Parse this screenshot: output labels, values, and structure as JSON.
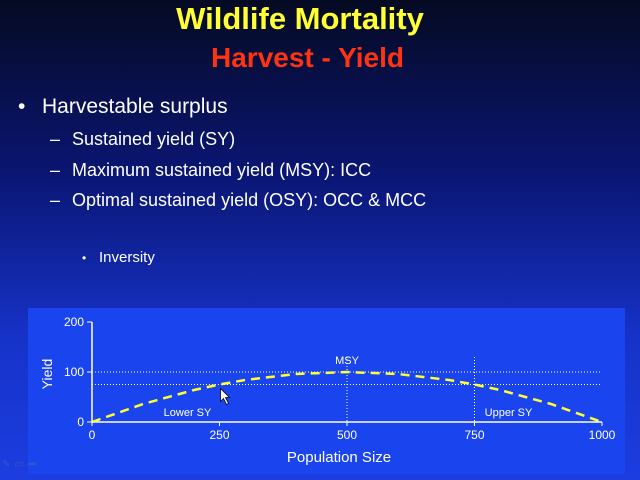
{
  "slide": {
    "title": "Wildlife Mortality",
    "subtitle": "Harvest - Yield",
    "main_bullet": "Harvestable surplus",
    "sub_bullets": [
      "Sustained yield (SY)",
      "Maximum sustained yield (MSY): ICC",
      "Optimal sustained yield (OSY): OCC & MCC"
    ],
    "minor_bullet": "Inversity",
    "bullet_glyph": "•",
    "dash_glyph": "–"
  },
  "colors": {
    "title": "#ffff33",
    "subtitle": "#ff3311",
    "chart_background": "#1a45ee",
    "curve": "#ffff33"
  },
  "chart_data": {
    "type": "line",
    "xlabel": "Population Size",
    "ylabel": "Yield",
    "xlim": [
      0,
      1000
    ],
    "ylim": [
      0,
      200
    ],
    "xticks": [
      0,
      250,
      500,
      750,
      1000
    ],
    "yticks": [
      0,
      100,
      200
    ],
    "series": [
      {
        "x": [
          0,
          100,
          200,
          250,
          300,
          400,
          500,
          600,
          700,
          750,
          800,
          900,
          1000
        ],
        "values": [
          0,
          36,
          64,
          75,
          84,
          96,
          100,
          96,
          84,
          75,
          64,
          36,
          0
        ],
        "style": "dashed"
      }
    ],
    "reference_lines": [
      {
        "orientation": "horizontal",
        "y": 100
      },
      {
        "orientation": "horizontal",
        "y": 75
      },
      {
        "orientation": "vertical",
        "x": 500
      },
      {
        "orientation": "vertical",
        "x": 750
      }
    ],
    "annotations": [
      {
        "text": "MSY",
        "x": 500,
        "y": 100
      },
      {
        "text": "Lower SY",
        "x": 250,
        "y": 75
      },
      {
        "text": "Upper SY",
        "x": 750,
        "y": 75
      }
    ],
    "grid": false,
    "legend": "none"
  }
}
